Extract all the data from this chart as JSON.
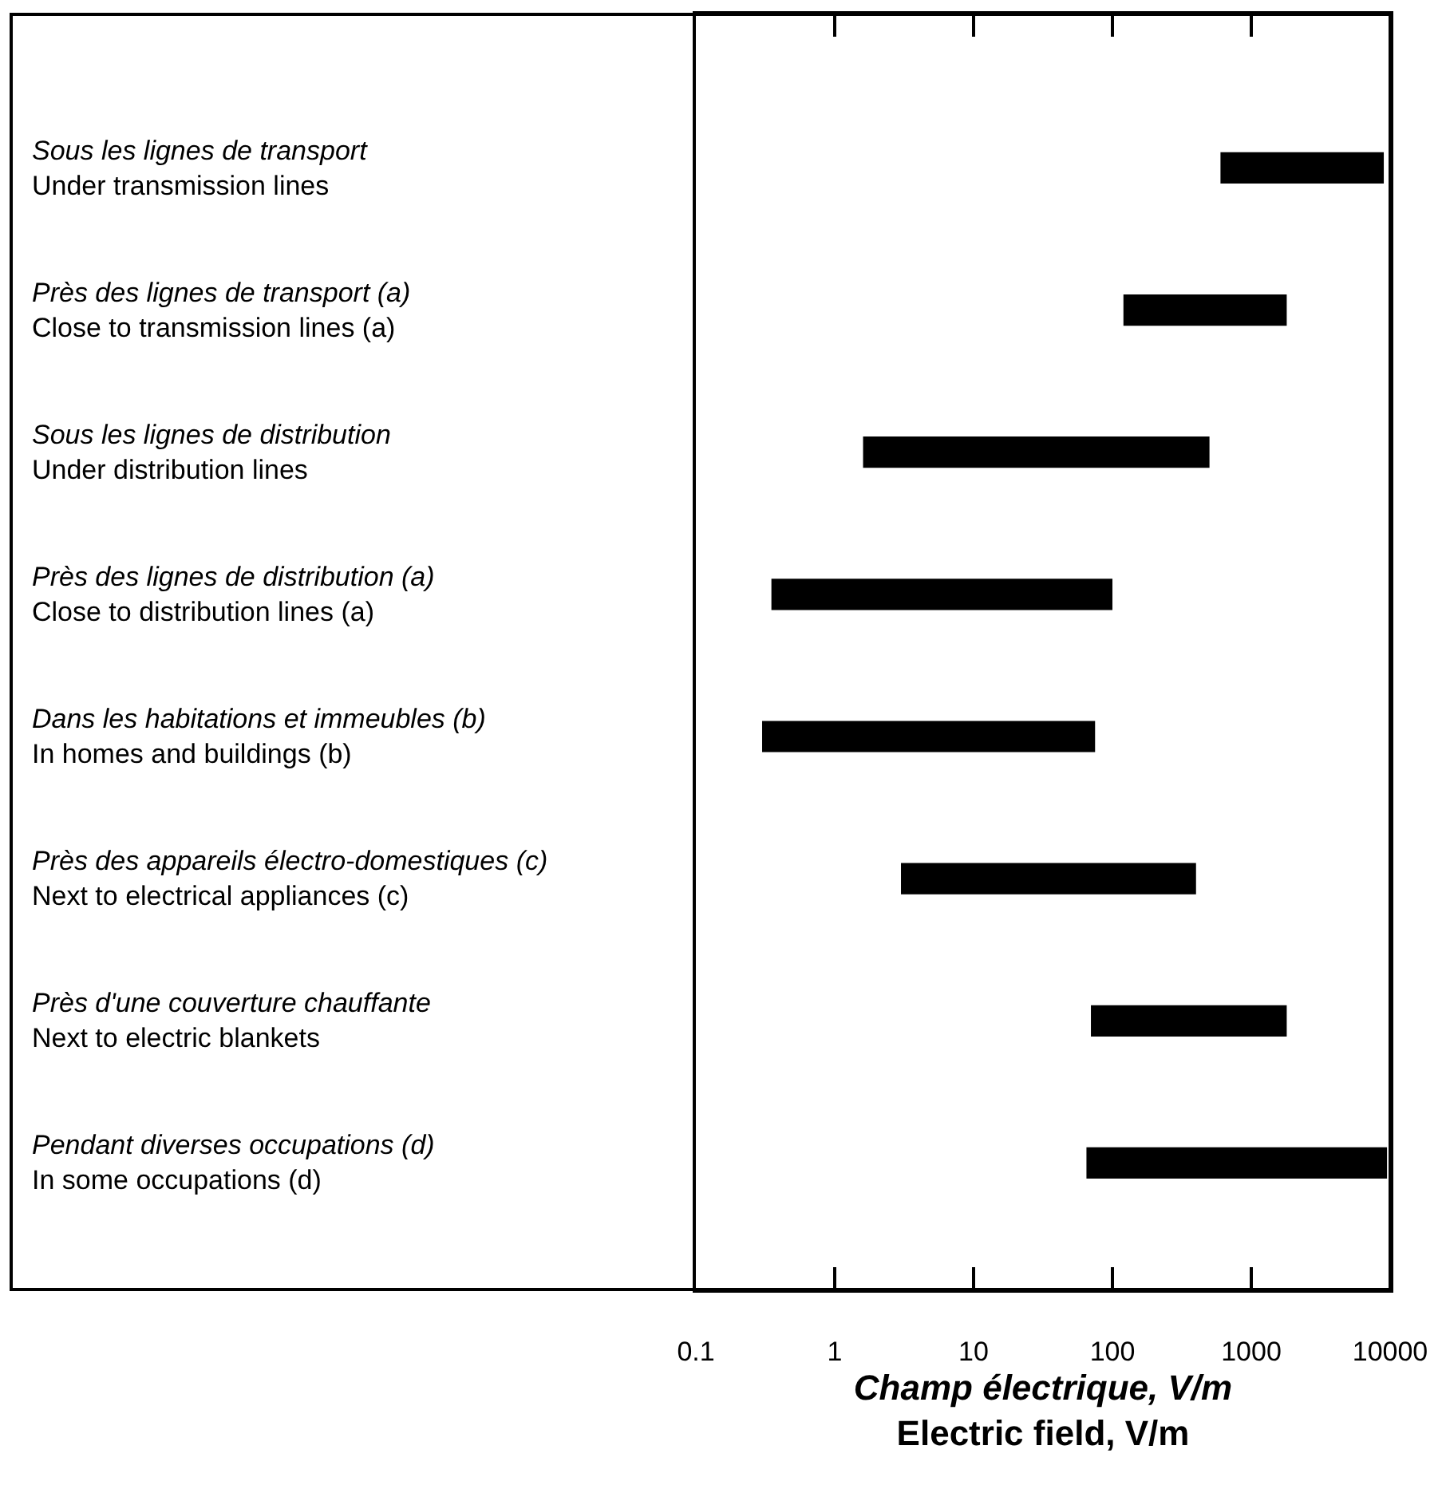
{
  "chart_data": {
    "type": "bar",
    "orientation": "horizontal",
    "log": "x",
    "xlabel": "Champ électrique, V/m\nElectric field, V/m",
    "categories": [
      "Sous les lignes de transport\nUnder transmission lines",
      "Près des lignes de transport (a)\nClose to transmission lines (a)",
      "Sous les lignes de distribution\nUnder distribution lines",
      "Près des lignes de distribution (a)\nClose to distribution lines (a)",
      "Dans les habitations et immeubles (b)\nIn homes and buildings (b)",
      "Près des appareils électro-domestiques (c)\nNext to electrical appliances (c)",
      "Près d'une couverture chauffante\nNext to electric blankets",
      "Pendant diverses occupations (d)\nIn some occupations (d)"
    ],
    "base": [
      600,
      120,
      1.6,
      0.35,
      0.3,
      3,
      70,
      65
    ],
    "values": [
      8400,
      1680,
      498.4,
      99.65,
      74.7,
      397,
      1730,
      9435
    ],
    "color": "#000000",
    "xlim": [
      0.1,
      10000
    ],
    "xticks": [
      0.1,
      1,
      10,
      100,
      1000,
      10000
    ],
    "grid": false
  }
}
